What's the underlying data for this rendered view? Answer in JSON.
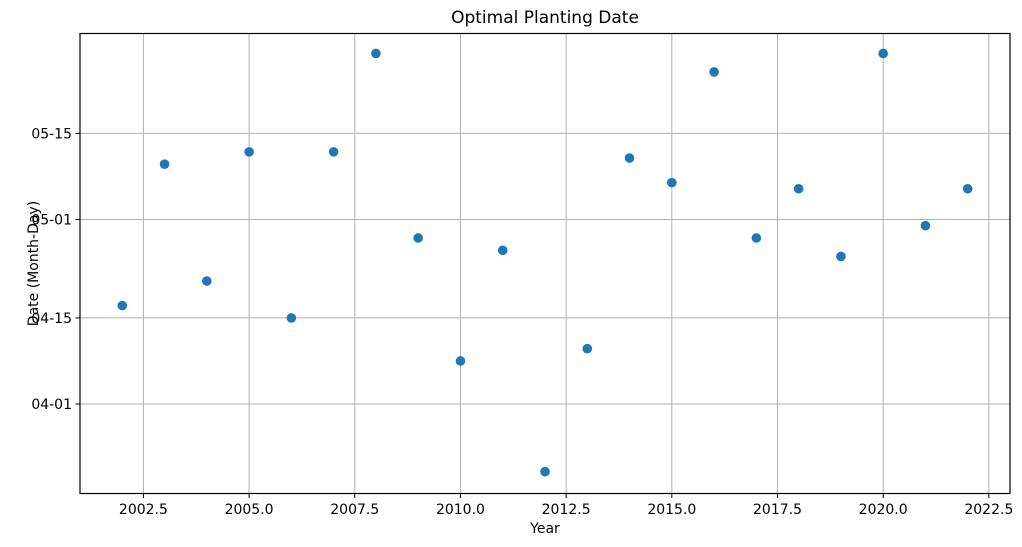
{
  "chart_data": {
    "type": "scatter",
    "title": "Optimal Planting Date",
    "xlabel": "Year",
    "ylabel": "Date (Month-Day)",
    "x": [
      2002,
      2003,
      2004,
      2005,
      2006,
      2007,
      2008,
      2009,
      2010,
      2011,
      2012,
      2013,
      2014,
      2015,
      2016,
      2017,
      2018,
      2019,
      2020,
      2021,
      2022
    ],
    "y_dates": [
      "04-17",
      "05-10",
      "04-21",
      "05-12",
      "04-15",
      "05-12",
      "05-28",
      "04-28",
      "04-08",
      "04-26",
      "03-21",
      "04-10",
      "05-11",
      "05-07",
      "05-25",
      "04-28",
      "05-06",
      "04-25",
      "05-28",
      "04-30",
      "05-06"
    ],
    "x_ticks": [
      2002.5,
      2005.0,
      2007.5,
      2010.0,
      2012.5,
      2015.0,
      2017.5,
      2020.0,
      2022.5
    ],
    "x_tick_labels": [
      "2002.5",
      "2005.0",
      "2007.5",
      "2010.0",
      "2012.5",
      "2015.0",
      "2017.5",
      "2020.0",
      "2022.5"
    ],
    "y_tick_labels": [
      "05-15",
      "05-01",
      "04-15",
      "04-01"
    ],
    "xlim": [
      2001.0,
      2023.0
    ],
    "ylim_day_of_year": [
      76.45,
      151.25
    ],
    "grid": true,
    "grid_color": "#b0b0b0",
    "frame_color": "#000000",
    "marker_color": "#1f77b4",
    "legend": "none"
  }
}
